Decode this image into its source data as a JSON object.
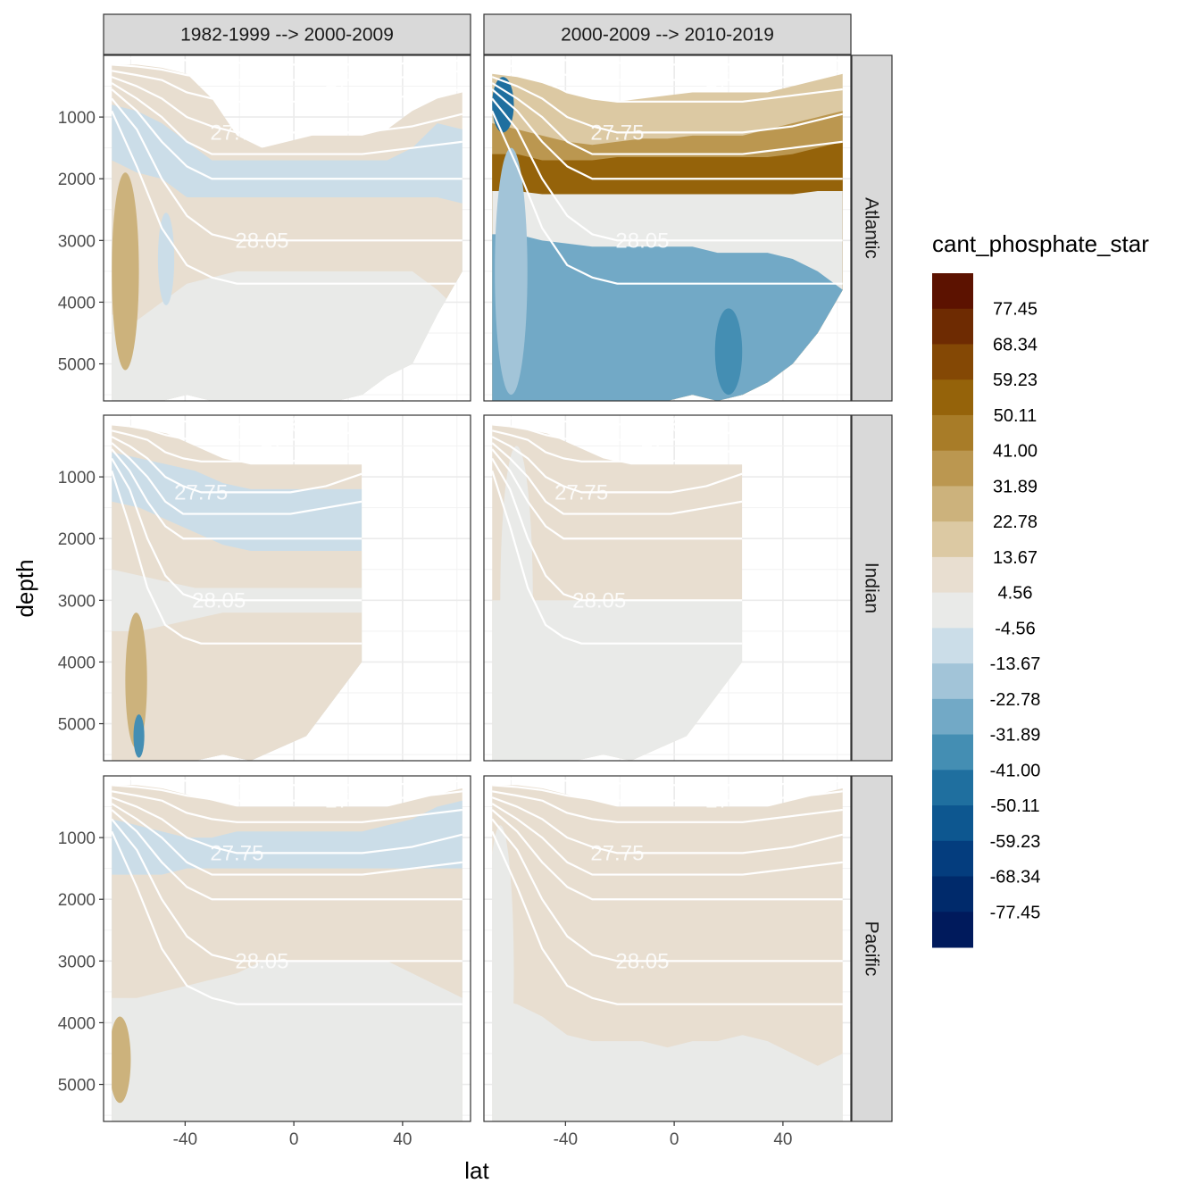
{
  "chart_data": {
    "type": "heatmap",
    "title": "",
    "xlabel": "lat",
    "ylabel": "depth",
    "xlim": [
      -70,
      65
    ],
    "ylim": [
      5600,
      0
    ],
    "y_reversed": true,
    "x_ticks": [
      -40,
      0,
      40
    ],
    "x_tick_labels": [
      "-40",
      "0",
      "40"
    ],
    "y_ticks": [
      1000,
      2000,
      3000,
      4000,
      5000
    ],
    "y_tick_labels": [
      "1000",
      "2000",
      "3000",
      "4000",
      "5000"
    ],
    "grid": true,
    "facet_columns": [
      "1982-1999 --> 2000-2009",
      "2000-2009 --> 2010-2019"
    ],
    "facet_rows": [
      "Atlantic",
      "Indian",
      "Pacific"
    ],
    "contour_labels": [
      "26",
      "27",
      "27.75",
      "28.05"
    ],
    "legend": {
      "title": "cant_phosphate_star",
      "position": "right",
      "breaks": [
        "77.45",
        "68.34",
        "59.23",
        "50.11",
        "41.00",
        "31.89",
        "22.78",
        "13.67",
        "4.56",
        "-4.56",
        "-13.67",
        "-22.78",
        "-31.89",
        "-41.00",
        "-50.11",
        "-59.23",
        "-68.34",
        "-77.45"
      ],
      "colors": [
        "#5c1200",
        "#6e2b02",
        "#844805",
        "#95630a",
        "#a87c28",
        "#bb9750",
        "#ccb27c",
        "#dcc9a3",
        "#e8ded0",
        "#e9eae8",
        "#cbdde8",
        "#a2c4d8",
        "#72a9c6",
        "#448eb3",
        "#1f6f9f",
        "#0d5790",
        "#043d7e",
        "#002a6b",
        "#001a5c"
      ]
    },
    "panels": [
      {
        "column": "1982-1999 --> 2000-2009",
        "row": "Atlantic",
        "bands": [
          {
            "color": "#e8ded0",
            "top": [
              150,
              150,
              200,
              300,
              700,
              1300,
              1500,
              1400,
              1300,
              1300,
              1300,
              1200,
              900,
              700,
              600
            ]
          },
          {
            "color": "#cbdde8",
            "top": [
              800,
              900,
              1100,
              1400,
              1700,
              1700,
              1700,
              1700,
              1700,
              1700,
              1700,
              1700,
              1500,
              1100,
              1200
            ]
          },
          {
            "color": "#e8ded0",
            "top": [
              1700,
              1900,
              2000,
              2300,
              2300,
              2300,
              2300,
              2300,
              2300,
              2300,
              2300,
              2300,
              2300,
              2300,
              2400
            ]
          },
          {
            "color": "#e9eae8",
            "top": [
              4200,
              4300,
              4000,
              3700,
              3600,
              3500,
              3500,
              3500,
              3500,
              3500,
              3500,
              3500,
              3500,
              3800,
              4200
            ]
          }
        ],
        "patches": [
          {
            "color": "#ccb27c",
            "lat": -62,
            "depth": 3500,
            "w": 10,
            "h": 3200
          },
          {
            "color": "#cbdde8",
            "lat": -47,
            "depth": 3300,
            "w": 6,
            "h": 1500
          }
        ],
        "bottom": [
          5600,
          5600,
          5600,
          5500,
          5600,
          5600,
          5600,
          5600,
          5600,
          5600,
          5500,
          5200,
          5000,
          4200,
          3500
        ]
      },
      {
        "column": "2000-2009 --> 2010-2019",
        "row": "Atlantic",
        "bands": [
          {
            "color": "#dcc9a3",
            "top": [
              300,
              350,
              450,
              600,
              700,
              750,
              700,
              650,
              600,
              600,
              600,
              600,
              500,
              400,
              300
            ]
          },
          {
            "color": "#bb9750",
            "top": [
              1100,
              1200,
              1300,
              1400,
              1450,
              1400,
              1350,
              1350,
              1300,
              1300,
              1300,
              1200,
              1100,
              1000,
              900
            ]
          },
          {
            "color": "#95630a",
            "top": [
              1600,
              1600,
              1700,
              1700,
              1700,
              1650,
              1650,
              1650,
              1650,
              1650,
              1650,
              1650,
              1600,
              1500,
              1400
            ]
          },
          {
            "color": "#e9eae8",
            "top": [
              2200,
              2200,
              2250,
              2250,
              2250,
              2250,
              2250,
              2250,
              2250,
              2250,
              2250,
              2250,
              2250,
              2200,
              2200
            ]
          },
          {
            "color": "#72a9c6",
            "top": [
              2900,
              2900,
              3000,
              3050,
              3100,
              3100,
              3100,
              3100,
              3100,
              3200,
              3200,
              3200,
              3300,
              3500,
              3800
            ]
          }
        ],
        "patches": [
          {
            "color": "#1f6f9f",
            "lat": -63,
            "depth": 800,
            "w": 8,
            "h": 900
          },
          {
            "color": "#a2c4d8",
            "lat": -60,
            "depth": 3500,
            "w": 12,
            "h": 4000
          },
          {
            "color": "#448eb3",
            "lat": 20,
            "depth": 4800,
            "w": 10,
            "h": 1400
          }
        ],
        "bottom": [
          5600,
          5600,
          5600,
          5600,
          5600,
          5600,
          5600,
          5600,
          5500,
          5600,
          5500,
          5300,
          5000,
          4500,
          3800
        ]
      },
      {
        "column": "1982-1999 --> 2000-2009",
        "row": "Indian",
        "bands": [
          {
            "color": "#e8ded0",
            "top": [
              150,
              200,
              300,
              500,
              700,
              800,
              800,
              800,
              800,
              800
            ]
          },
          {
            "color": "#cbdde8",
            "top": [
              600,
              700,
              800,
              900,
              1100,
              1200,
              1200,
              1200,
              1200,
              1200
            ]
          },
          {
            "color": "#e8ded0",
            "top": [
              1400,
              1500,
              1700,
              1900,
              2100,
              2200,
              2200,
              2200,
              2200,
              2200
            ]
          },
          {
            "color": "#e9eae8",
            "top": [
              2500,
              2600,
              2700,
              2800,
              2800,
              2800,
              2800,
              2800,
              2800,
              2800
            ]
          },
          {
            "color": "#e8ded0",
            "top": [
              3500,
              3500,
              3400,
              3300,
              3200,
              3200,
              3200,
              3200,
              3200,
              3200
            ]
          }
        ],
        "patches": [
          {
            "color": "#ccb27c",
            "lat": -58,
            "depth": 4300,
            "w": 8,
            "h": 2200
          },
          {
            "color": "#448eb3",
            "lat": -57,
            "depth": 5200,
            "w": 4,
            "h": 700
          }
        ],
        "bottom": [
          5600,
          5600,
          5600,
          5600,
          5500,
          5600,
          5400,
          5200,
          4600,
          4000
        ],
        "lat_max": 25
      },
      {
        "column": "2000-2009 --> 2010-2019",
        "row": "Indian",
        "bands": [
          {
            "color": "#e8ded0",
            "top": [
              150,
              200,
              300,
              500,
              700,
              800,
              800,
              800,
              800,
              800
            ]
          },
          {
            "color": "#e9eae8",
            "top": [
              3000,
              3000,
              3000,
              3000,
              3000,
              3000,
              3000,
              3000,
              3000,
              3000
            ]
          }
        ],
        "patches": [
          {
            "color": "#e9eae8",
            "lat": -58,
            "depth": 3000,
            "w": 12,
            "h": 5000
          }
        ],
        "bottom": [
          5600,
          5600,
          5600,
          5600,
          5500,
          5600,
          5400,
          5200,
          4600,
          4000
        ],
        "lat_max": 25
      },
      {
        "column": "1982-1999 --> 2000-2009",
        "row": "Pacific",
        "bands": [
          {
            "color": "#e8ded0",
            "top": [
              150,
              150,
              200,
              300,
              400,
              500,
              500,
              500,
              500,
              500,
              500,
              500,
              400,
              300,
              200
            ]
          },
          {
            "color": "#cbdde8",
            "top": [
              700,
              800,
              900,
              1000,
              1000,
              900,
              900,
              900,
              900,
              900,
              900,
              800,
              700,
              500,
              400
            ]
          },
          {
            "color": "#e8ded0",
            "top": [
              1600,
              1600,
              1600,
              1500,
              1500,
              1500,
              1500,
              1500,
              1500,
              1500,
              1500,
              1500,
              1500,
              1500,
              1500
            ]
          },
          {
            "color": "#e9eae8",
            "top": [
              3600,
              3600,
              3500,
              3400,
              3300,
              3200,
              3000,
              3000,
              3000,
              3000,
              3000,
              3000,
              3200,
              3400,
              3600
            ]
          }
        ],
        "patches": [
          {
            "color": "#ccb27c",
            "lat": -64,
            "depth": 4600,
            "w": 8,
            "h": 1400
          }
        ],
        "bottom": [
          5600,
          5600,
          5600,
          5600,
          5600,
          5600,
          5600,
          5600,
          5600,
          5600,
          5600,
          5600,
          5600,
          5600,
          5600
        ]
      },
      {
        "column": "2000-2009 --> 2010-2019",
        "row": "Pacific",
        "bands": [
          {
            "color": "#e8ded0",
            "top": [
              150,
              150,
              200,
              300,
              400,
              500,
              500,
              500,
              500,
              500,
              500,
              500,
              400,
              300,
              200
            ]
          },
          {
            "color": "#e9eae8",
            "top": [
              3600,
              3700,
              3900,
              4200,
              4300,
              4300,
              4300,
              4400,
              4300,
              4300,
              4200,
              4300,
              4500,
              4700,
              4500
            ]
          }
        ],
        "patches": [
          {
            "color": "#e9eae8",
            "lat": -64,
            "depth": 3200,
            "w": 10,
            "h": 4800
          }
        ],
        "bottom": [
          5600,
          5600,
          5600,
          5600,
          5600,
          5600,
          5600,
          5600,
          5600,
          5600,
          5600,
          5600,
          5600,
          5600,
          5600
        ]
      }
    ],
    "isopycnals": [
      {
        "label": "26",
        "depth": [
          50,
          50,
          60,
          80,
          100,
          120,
          150,
          150,
          150,
          150,
          150,
          150,
          120,
          100,
          80
        ]
      },
      {
        "label": "27",
        "depth": [
          150,
          180,
          230,
          320,
          380,
          400,
          400,
          400,
          400,
          400,
          400,
          380,
          340,
          300,
          250
        ]
      },
      {
        "label": "",
        "depth": [
          250,
          320,
          400,
          600,
          700,
          750,
          750,
          750,
          750,
          750,
          750,
          700,
          650,
          600,
          550
        ]
      },
      {
        "label": "27.75",
        "depth": [
          350,
          500,
          700,
          1000,
          1150,
          1250,
          1250,
          1250,
          1250,
          1250,
          1250,
          1200,
          1150,
          1050,
          950
        ]
      },
      {
        "label": "",
        "depth": [
          450,
          700,
          1000,
          1400,
          1600,
          1600,
          1600,
          1600,
          1600,
          1600,
          1600,
          1550,
          1500,
          1450,
          1400
        ]
      },
      {
        "label": "",
        "depth": [
          550,
          900,
          1400,
          1800,
          2000,
          2000,
          2000,
          2000,
          2000,
          2000,
          2000,
          2000,
          2000,
          2000,
          2000
        ]
      },
      {
        "label": "28.05",
        "depth": [
          700,
          1200,
          2000,
          2600,
          2900,
          3000,
          3000,
          3000,
          3000,
          3000,
          3000,
          3000,
          3000,
          3000,
          3000
        ]
      },
      {
        "label": "",
        "depth": [
          900,
          1800,
          2800,
          3400,
          3600,
          3700,
          3700,
          3700,
          3700,
          3700,
          3700,
          3700,
          3700,
          3700,
          3700
        ]
      }
    ]
  }
}
